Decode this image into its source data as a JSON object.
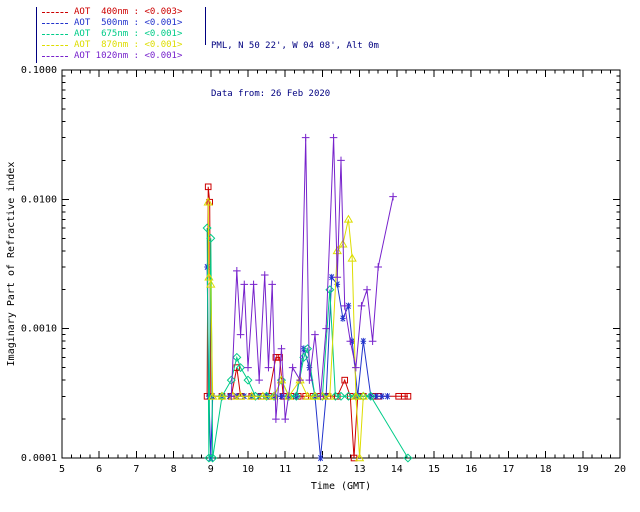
{
  "window": {
    "background": "#ffffff"
  },
  "header": {
    "site_line": "PML, N 50 22', W 04 08', Alt 0m",
    "date_line": "Data from: 26 Feb 2020",
    "text_color": "#000080"
  },
  "chart_data": {
    "type": "line",
    "title": "",
    "xlabel": "Time (GMT)",
    "ylabel": "Imaginary Part of Refractive index",
    "xlim": [
      5,
      20
    ],
    "ylim": [
      0.0001,
      0.1
    ],
    "yscale": "log",
    "grid": false,
    "legend_position": "top-left-outside",
    "xticks": [
      5,
      6,
      7,
      8,
      9,
      10,
      11,
      12,
      13,
      14,
      15,
      16,
      17,
      18,
      19,
      20
    ],
    "xtick_labels": [
      "5",
      "6",
      "7",
      "8",
      "9",
      "10",
      "11",
      "12",
      "13",
      "14",
      "15",
      "16",
      "17",
      "18",
      "19",
      "20"
    ],
    "yticks": [
      0.0001,
      0.001,
      0.01,
      0.1
    ],
    "ytick_labels": [
      "0.0001",
      "0.0010",
      "0.0100",
      "0.1000"
    ],
    "series": [
      {
        "name": "AOT 400nm",
        "legend_label": "AOT  400nm : <0.003>",
        "color": "#cc0000",
        "marker": "square",
        "points": [
          [
            8.9,
            0.0003
          ],
          [
            8.93,
            0.0125
          ],
          [
            8.97,
            0.0095
          ],
          [
            9.0,
            0.0003
          ],
          [
            9.3,
            0.0003
          ],
          [
            9.55,
            0.0003
          ],
          [
            9.7,
            0.0005
          ],
          [
            9.8,
            0.0003
          ],
          [
            10.1,
            0.0003
          ],
          [
            10.35,
            0.0003
          ],
          [
            10.55,
            0.0003
          ],
          [
            10.75,
            0.0006
          ],
          [
            10.85,
            0.0006
          ],
          [
            10.95,
            0.0003
          ],
          [
            11.15,
            0.0003
          ],
          [
            11.35,
            0.0003
          ],
          [
            11.55,
            0.0003
          ],
          [
            11.75,
            0.0003
          ],
          [
            11.95,
            0.0003
          ],
          [
            12.15,
            0.0003
          ],
          [
            12.4,
            0.0003
          ],
          [
            12.6,
            0.0004
          ],
          [
            12.75,
            0.0003
          ],
          [
            12.85,
            0.0001
          ],
          [
            12.95,
            0.0003
          ],
          [
            13.1,
            0.0003
          ],
          [
            13.35,
            0.0003
          ],
          [
            13.5,
            0.0003
          ],
          [
            14.05,
            0.0003
          ],
          [
            14.2,
            0.0003
          ],
          [
            14.3,
            0.0003
          ]
        ]
      },
      {
        "name": "AOT 500nm",
        "legend_label": "AOT  500nm : <0.001>",
        "color": "#2233cc",
        "marker": "asterisk",
        "points": [
          [
            8.9,
            0.003
          ],
          [
            8.95,
            0.0003
          ],
          [
            9.0,
            0.0001
          ],
          [
            9.05,
            0.0003
          ],
          [
            9.3,
            0.0003
          ],
          [
            9.5,
            0.0003
          ],
          [
            9.7,
            0.0003
          ],
          [
            9.9,
            0.0003
          ],
          [
            10.1,
            0.0003
          ],
          [
            10.3,
            0.0003
          ],
          [
            10.5,
            0.0003
          ],
          [
            10.7,
            0.0003
          ],
          [
            10.9,
            0.0003
          ],
          [
            11.1,
            0.0003
          ],
          [
            11.3,
            0.0003
          ],
          [
            11.5,
            0.0007
          ],
          [
            11.65,
            0.0005
          ],
          [
            11.8,
            0.0003
          ],
          [
            11.95,
            0.0001
          ],
          [
            12.1,
            0.0003
          ],
          [
            12.25,
            0.0025
          ],
          [
            12.4,
            0.0022
          ],
          [
            12.55,
            0.0012
          ],
          [
            12.7,
            0.0015
          ],
          [
            12.8,
            0.0008
          ],
          [
            12.95,
            0.0003
          ],
          [
            13.1,
            0.0008
          ],
          [
            13.3,
            0.0003
          ],
          [
            13.45,
            0.0003
          ],
          [
            13.6,
            0.0003
          ],
          [
            13.75,
            0.0003
          ]
        ]
      },
      {
        "name": "AOT 675nm",
        "legend_label": "AOT  675nm : <0.001>",
        "color": "#00cc88",
        "marker": "diamond",
        "points": [
          [
            8.9,
            0.006
          ],
          [
            8.95,
            0.0001
          ],
          [
            9.0,
            0.005
          ],
          [
            9.05,
            0.0001
          ],
          [
            9.3,
            0.0003
          ],
          [
            9.55,
            0.0004
          ],
          [
            9.7,
            0.0006
          ],
          [
            9.8,
            0.0005
          ],
          [
            10.0,
            0.0004
          ],
          [
            10.2,
            0.0003
          ],
          [
            10.5,
            0.0003
          ],
          [
            10.7,
            0.0003
          ],
          [
            10.9,
            0.0004
          ],
          [
            11.1,
            0.0003
          ],
          [
            11.3,
            0.0003
          ],
          [
            11.5,
            0.0006
          ],
          [
            11.6,
            0.0007
          ],
          [
            11.8,
            0.0003
          ],
          [
            12.0,
            0.0003
          ],
          [
            12.2,
            0.002
          ],
          [
            12.35,
            0.0003
          ],
          [
            12.5,
            0.0003
          ],
          [
            12.7,
            0.0003
          ],
          [
            12.9,
            0.0003
          ],
          [
            13.1,
            0.0003
          ],
          [
            13.3,
            0.0003
          ],
          [
            14.3,
            0.0001
          ]
        ]
      },
      {
        "name": "AOT 870nm",
        "legend_label": "AOT  870nm : <0.001>",
        "color": "#dddd00",
        "marker": "triangle",
        "points": [
          [
            8.93,
            0.0095
          ],
          [
            8.95,
            0.0025
          ],
          [
            9.0,
            0.0022
          ],
          [
            9.05,
            0.0003
          ],
          [
            9.3,
            0.0003
          ],
          [
            9.6,
            0.0003
          ],
          [
            9.8,
            0.0003
          ],
          [
            10.1,
            0.0003
          ],
          [
            10.4,
            0.0003
          ],
          [
            10.7,
            0.0003
          ],
          [
            10.9,
            0.0004
          ],
          [
            11.1,
            0.0003
          ],
          [
            11.4,
            0.0004
          ],
          [
            11.6,
            0.0003
          ],
          [
            11.8,
            0.0003
          ],
          [
            12.0,
            0.0003
          ],
          [
            12.2,
            0.0003
          ],
          [
            12.4,
            0.004
          ],
          [
            12.55,
            0.0045
          ],
          [
            12.7,
            0.007
          ],
          [
            12.8,
            0.0035
          ],
          [
            12.9,
            0.0003
          ],
          [
            13.0,
            0.0001
          ],
          [
            13.1,
            0.0003
          ]
        ]
      },
      {
        "name": "AOT 1020nm",
        "legend_label": "AOT 1020nm : <0.001>",
        "color": "#7722cc",
        "marker": "plus",
        "points": [
          [
            9.55,
            0.0003
          ],
          [
            9.7,
            0.0028
          ],
          [
            9.8,
            0.0009
          ],
          [
            9.9,
            0.0022
          ],
          [
            10.0,
            0.0005
          ],
          [
            10.15,
            0.0022
          ],
          [
            10.3,
            0.0004
          ],
          [
            10.45,
            0.0026
          ],
          [
            10.55,
            0.0005
          ],
          [
            10.65,
            0.0022
          ],
          [
            10.75,
            0.0002
          ],
          [
            10.9,
            0.0007
          ],
          [
            11.0,
            0.0002
          ],
          [
            11.2,
            0.0005
          ],
          [
            11.4,
            0.0004
          ],
          [
            11.55,
            0.03
          ],
          [
            11.65,
            0.0004
          ],
          [
            11.8,
            0.0009
          ],
          [
            11.95,
            0.0003
          ],
          [
            12.1,
            0.001
          ],
          [
            12.3,
            0.03
          ],
          [
            12.4,
            0.0025
          ],
          [
            12.5,
            0.02
          ],
          [
            12.6,
            0.0015
          ],
          [
            12.75,
            0.0008
          ],
          [
            12.9,
            0.0005
          ],
          [
            13.05,
            0.0015
          ],
          [
            13.2,
            0.002
          ],
          [
            13.35,
            0.0008
          ],
          [
            13.5,
            0.003
          ],
          [
            13.9,
            0.0105
          ]
        ]
      }
    ]
  }
}
